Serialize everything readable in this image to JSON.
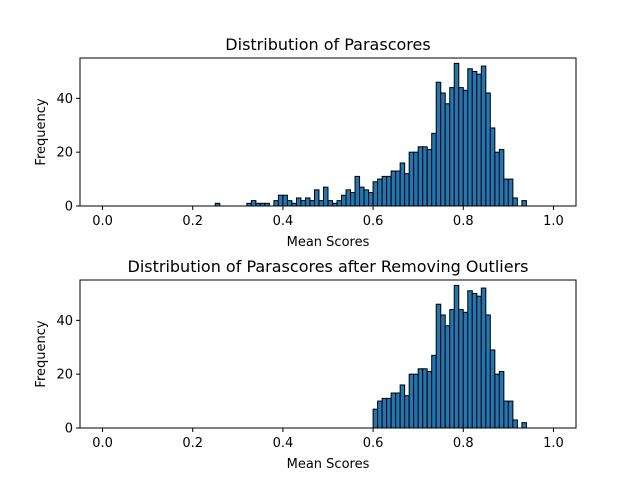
{
  "chart_data": [
    {
      "type": "bar",
      "title": "Distribution of Parascores",
      "xlabel": "Mean Scores",
      "ylabel": "Frequency",
      "xlim": [
        -0.05,
        1.05
      ],
      "ylim": [
        0,
        55
      ],
      "xticks": [
        "0.0",
        "0.2",
        "0.4",
        "0.6",
        "0.8",
        "1.0"
      ],
      "yticks": [
        "0",
        "20",
        "40"
      ],
      "bin_width": 0.01,
      "bar_color": "#1f77b4",
      "edge_color": "#000000",
      "bins": [
        [
          0.25,
          1
        ],
        [
          0.32,
          1
        ],
        [
          0.33,
          2
        ],
        [
          0.34,
          1
        ],
        [
          0.35,
          1
        ],
        [
          0.36,
          1
        ],
        [
          0.38,
          2
        ],
        [
          0.39,
          4
        ],
        [
          0.4,
          4
        ],
        [
          0.41,
          2
        ],
        [
          0.42,
          1
        ],
        [
          0.43,
          3
        ],
        [
          0.44,
          2
        ],
        [
          0.45,
          3
        ],
        [
          0.46,
          2
        ],
        [
          0.47,
          6
        ],
        [
          0.48,
          2
        ],
        [
          0.49,
          7
        ],
        [
          0.5,
          2
        ],
        [
          0.51,
          1
        ],
        [
          0.52,
          2
        ],
        [
          0.53,
          4
        ],
        [
          0.54,
          6
        ],
        [
          0.55,
          5
        ],
        [
          0.56,
          11
        ],
        [
          0.57,
          7
        ],
        [
          0.58,
          6
        ],
        [
          0.59,
          5
        ],
        [
          0.6,
          9
        ],
        [
          0.61,
          10
        ],
        [
          0.62,
          11
        ],
        [
          0.63,
          11
        ],
        [
          0.64,
          13
        ],
        [
          0.65,
          13
        ],
        [
          0.66,
          16
        ],
        [
          0.67,
          12
        ],
        [
          0.68,
          20
        ],
        [
          0.69,
          20
        ],
        [
          0.7,
          22
        ],
        [
          0.71,
          22
        ],
        [
          0.72,
          21
        ],
        [
          0.73,
          27
        ],
        [
          0.74,
          46
        ],
        [
          0.75,
          42
        ],
        [
          0.76,
          38
        ],
        [
          0.77,
          44
        ],
        [
          0.78,
          53
        ],
        [
          0.79,
          44
        ],
        [
          0.8,
          43
        ],
        [
          0.81,
          51
        ],
        [
          0.82,
          50
        ],
        [
          0.83,
          49
        ],
        [
          0.84,
          52
        ],
        [
          0.85,
          42
        ],
        [
          0.86,
          29
        ],
        [
          0.87,
          20
        ],
        [
          0.88,
          21
        ],
        [
          0.89,
          10
        ],
        [
          0.9,
          10
        ],
        [
          0.91,
          3
        ],
        [
          0.93,
          2
        ]
      ]
    },
    {
      "type": "bar",
      "title": "Distribution of Parascores after Removing Outliers",
      "xlabel": "Mean Scores",
      "ylabel": "Frequency",
      "xlim": [
        -0.05,
        1.05
      ],
      "ylim": [
        0,
        55
      ],
      "xticks": [
        "0.0",
        "0.2",
        "0.4",
        "0.6",
        "0.8",
        "1.0"
      ],
      "yticks": [
        "0",
        "20",
        "40"
      ],
      "bin_width": 0.01,
      "bar_color": "#1f77b4",
      "edge_color": "#000000",
      "bins": [
        [
          0.6,
          7
        ],
        [
          0.61,
          10
        ],
        [
          0.62,
          11
        ],
        [
          0.63,
          11
        ],
        [
          0.64,
          13
        ],
        [
          0.65,
          13
        ],
        [
          0.66,
          16
        ],
        [
          0.67,
          12
        ],
        [
          0.68,
          20
        ],
        [
          0.69,
          20
        ],
        [
          0.7,
          22
        ],
        [
          0.71,
          22
        ],
        [
          0.72,
          21
        ],
        [
          0.73,
          27
        ],
        [
          0.74,
          46
        ],
        [
          0.75,
          42
        ],
        [
          0.76,
          38
        ],
        [
          0.77,
          44
        ],
        [
          0.78,
          53
        ],
        [
          0.79,
          44
        ],
        [
          0.8,
          43
        ],
        [
          0.81,
          51
        ],
        [
          0.82,
          50
        ],
        [
          0.83,
          49
        ],
        [
          0.84,
          52
        ],
        [
          0.85,
          42
        ],
        [
          0.86,
          29
        ],
        [
          0.87,
          20
        ],
        [
          0.88,
          21
        ],
        [
          0.89,
          10
        ],
        [
          0.9,
          10
        ],
        [
          0.91,
          3
        ],
        [
          0.93,
          2
        ]
      ]
    }
  ]
}
